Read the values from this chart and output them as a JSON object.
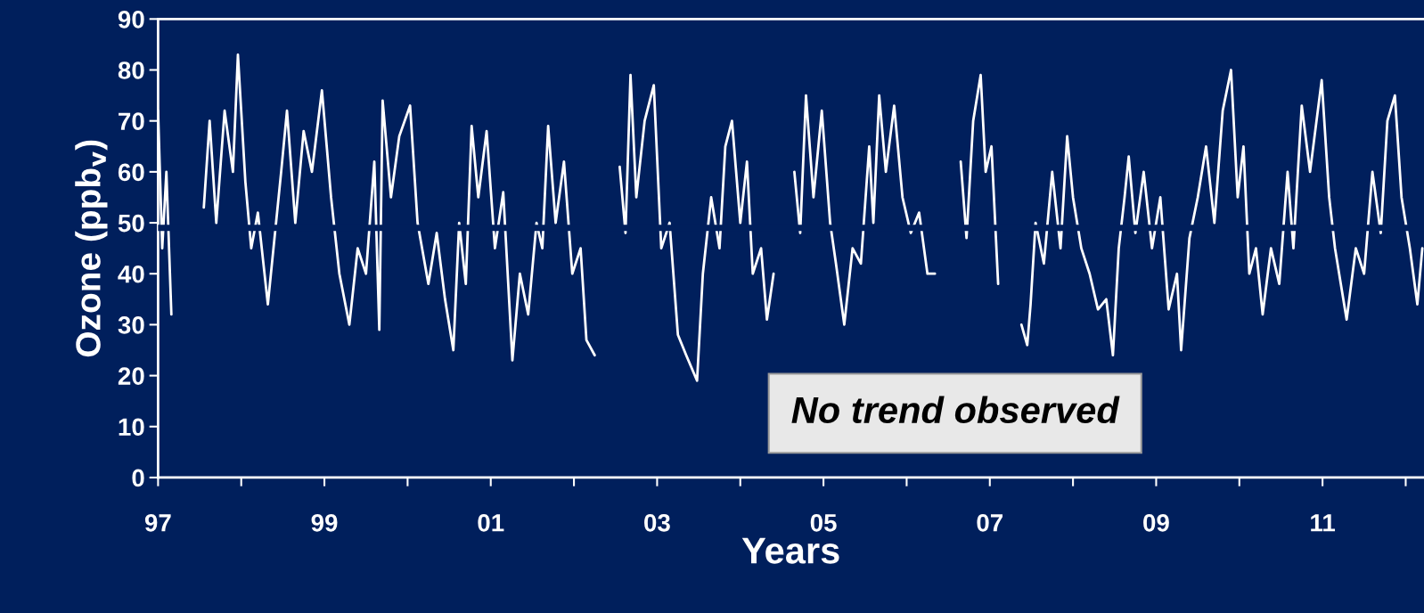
{
  "chart_data": {
    "type": "line",
    "xlabel": "Years",
    "ylabel": "Ozone (ppb$_{v}$)",
    "x": [
      1997.0,
      1997.05,
      1997.1,
      1997.16,
      1997.3,
      1997.55,
      1997.62,
      1997.7,
      1997.8,
      1997.9,
      1997.96,
      1998.05,
      1998.12,
      1998.2,
      1998.32,
      1998.4,
      1998.48,
      1998.55,
      1998.65,
      1998.75,
      1998.85,
      1998.97,
      1999.08,
      1999.18,
      1999.3,
      1999.4,
      1999.5,
      1999.6,
      1999.66,
      1999.7,
      1999.8,
      1999.9,
      2000.03,
      2000.12,
      2000.25,
      2000.35,
      2000.45,
      2000.55,
      2000.62,
      2000.7,
      2000.77,
      2000.85,
      2000.95,
      2001.05,
      2001.15,
      2001.26,
      2001.35,
      2001.45,
      2001.55,
      2001.62,
      2001.69,
      2001.78,
      2001.88,
      2001.98,
      2002.08,
      2002.15,
      2002.25,
      2002.4,
      2002.55,
      2002.62,
      2002.68,
      2002.75,
      2002.85,
      2002.96,
      2003.05,
      2003.15,
      2003.25,
      2003.35,
      2003.48,
      2003.55,
      2003.65,
      2003.75,
      2003.82,
      2003.9,
      2004.0,
      2004.08,
      2004.15,
      2004.25,
      2004.32,
      2004.4,
      2004.52,
      2004.65,
      2004.72,
      2004.79,
      2004.88,
      2004.98,
      2005.08,
      2005.15,
      2005.25,
      2005.35,
      2005.45,
      2005.55,
      2005.6,
      2005.67,
      2005.75,
      2005.85,
      2005.95,
      2006.05,
      2006.15,
      2006.25,
      2006.34,
      2006.5,
      2006.65,
      2006.72,
      2006.8,
      2006.89,
      2006.95,
      2007.02,
      2007.1,
      2007.25,
      2007.38,
      2007.45,
      2007.49,
      2007.55,
      2007.65,
      2007.75,
      2007.85,
      2007.93,
      2008.0,
      2008.1,
      2008.2,
      2008.3,
      2008.4,
      2008.48,
      2008.55,
      2008.62,
      2008.67,
      2008.75,
      2008.85,
      2008.95,
      2009.05,
      2009.15,
      2009.25,
      2009.3,
      2009.4,
      2009.5,
      2009.6,
      2009.7,
      2009.8,
      2009.9,
      2009.98,
      2010.05,
      2010.12,
      2010.2,
      2010.28,
      2010.38,
      2010.48,
      2010.58,
      2010.65,
      2010.75,
      2010.85,
      2010.99,
      2011.08,
      2011.15,
      2011.22,
      2011.29,
      2011.4,
      2011.5,
      2011.6,
      2011.7,
      2011.78,
      2011.87,
      2011.95,
      2012.05,
      2012.14,
      2012.2
    ],
    "series": [
      {
        "color": "#ffffff",
        "values": [
          72,
          45,
          60,
          32,
          null,
          53,
          70,
          50,
          72,
          60,
          83,
          58,
          45,
          52,
          34,
          47,
          60,
          72,
          50,
          68,
          60,
          76,
          55,
          40,
          30,
          45,
          40,
          62,
          29,
          74,
          55,
          67,
          73,
          50,
          38,
          48,
          35,
          25,
          50,
          38,
          69,
          55,
          68,
          45,
          56,
          23,
          40,
          32,
          50,
          45,
          69,
          50,
          62,
          40,
          45,
          27,
          24,
          null,
          61,
          48,
          79,
          55,
          70,
          77,
          45,
          50,
          28,
          24,
          19,
          40,
          55,
          45,
          65,
          70,
          50,
          62,
          40,
          45,
          31,
          40,
          null,
          60,
          48,
          75,
          55,
          72,
          50,
          42,
          30,
          45,
          42,
          65,
          50,
          75,
          60,
          73,
          55,
          48,
          52,
          40,
          40,
          null,
          62,
          47,
          70,
          79,
          60,
          65,
          38,
          null,
          30,
          26,
          34,
          50,
          42,
          60,
          45,
          67,
          55,
          45,
          40,
          33,
          35,
          24,
          45,
          55,
          63,
          48,
          60,
          45,
          55,
          33,
          40,
          25,
          47,
          55,
          65,
          50,
          72,
          80,
          55,
          65,
          40,
          45,
          32,
          45,
          38,
          60,
          45,
          73,
          60,
          78,
          55,
          45,
          38,
          31,
          45,
          40,
          60,
          48,
          70,
          75,
          55,
          45,
          34,
          45
        ]
      }
    ],
    "xlim": [
      1997,
      2012.22
    ],
    "ylim": [
      0,
      90
    ],
    "xticks": [
      {
        "value": 1997,
        "label": "97"
      },
      {
        "value": 1998,
        "label": null
      },
      {
        "value": 1999,
        "label": "99"
      },
      {
        "value": 2000,
        "label": null
      },
      {
        "value": 2001,
        "label": "01"
      },
      {
        "value": 2002,
        "label": null
      },
      {
        "value": 2003,
        "label": "03"
      },
      {
        "value": 2004,
        "label": null
      },
      {
        "value": 2005,
        "label": "05"
      },
      {
        "value": 2006,
        "label": null
      },
      {
        "value": 2007,
        "label": "07"
      },
      {
        "value": 2008,
        "label": null
      },
      {
        "value": 2009,
        "label": "09"
      },
      {
        "value": 2010,
        "label": null
      },
      {
        "value": 2011,
        "label": "11"
      },
      {
        "value": 2012,
        "label": null
      }
    ],
    "yticks": [
      0,
      10,
      20,
      30,
      40,
      50,
      60,
      70,
      80,
      90
    ],
    "ref_lines": [
      {
        "axis": "y",
        "value": 49,
        "color": "#001f5c"
      }
    ],
    "annotations": [
      "No trend observed"
    ]
  }
}
